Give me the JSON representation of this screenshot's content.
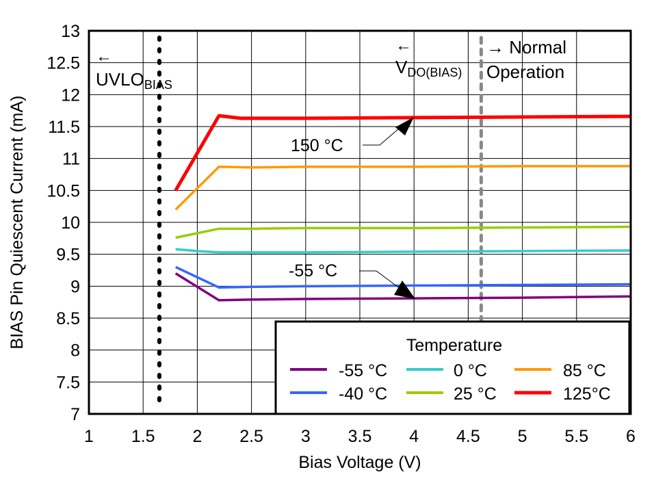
{
  "chart_data": {
    "type": "line",
    "xlabel": "Bias Voltage (V)",
    "ylabel": "BIAS Pin Quiescent Current (mA)",
    "xlim": [
      1,
      6
    ],
    "ylim": [
      7,
      13
    ],
    "xticks": [
      "1",
      "1.5",
      "2",
      "2.5",
      "3",
      "3.5",
      "4",
      "4.5",
      "5",
      "5.5",
      "6"
    ],
    "yticks": [
      "7",
      "7.5",
      "8",
      "8.5",
      "9",
      "9.5",
      "10",
      "10.5",
      "11",
      "11.5",
      "12",
      "12.5",
      "13"
    ],
    "grid": true,
    "legend": {
      "title": "Temperature",
      "placement": "bottom-right"
    },
    "series": [
      {
        "name": "-55 °C",
        "color": "#800080",
        "x": [
          1.8,
          2.2,
          2.5,
          3,
          4,
          5,
          6
        ],
        "y": [
          9.2,
          8.78,
          8.79,
          8.8,
          8.81,
          8.82,
          8.84
        ]
      },
      {
        "name": "-40 °C",
        "color": "#3366ff",
        "x": [
          1.8,
          2.2,
          2.5,
          3,
          4,
          5,
          6
        ],
        "y": [
          9.3,
          8.98,
          8.99,
          9.0,
          9.01,
          9.02,
          9.03
        ]
      },
      {
        "name": "0 °C",
        "color": "#33cccc",
        "x": [
          1.8,
          2.0,
          2.2,
          3,
          4,
          5,
          6
        ],
        "y": [
          9.58,
          9.55,
          9.53,
          9.53,
          9.54,
          9.55,
          9.56
        ]
      },
      {
        "name": "25 °C",
        "color": "#99cc00",
        "x": [
          1.8,
          2.2,
          2.5,
          3,
          4,
          5,
          6
        ],
        "y": [
          9.76,
          9.9,
          9.9,
          9.91,
          9.91,
          9.92,
          9.93
        ]
      },
      {
        "name": "85 °C",
        "color": "#ff9900",
        "x": [
          1.8,
          2.2,
          2.5,
          3,
          4,
          5,
          6
        ],
        "y": [
          10.2,
          10.87,
          10.86,
          10.87,
          10.87,
          10.88,
          10.88
        ]
      },
      {
        "name": "125°C",
        "color": "#ff0000",
        "x": [
          1.8,
          2.2,
          2.4,
          3,
          4,
          5,
          6
        ],
        "y": [
          10.5,
          11.67,
          11.63,
          11.63,
          11.64,
          11.65,
          11.66
        ]
      }
    ],
    "vlines": [
      {
        "x": 1.65,
        "color": "#000000",
        "style": "dotted"
      },
      {
        "x": 4.62,
        "color": "#888888",
        "style": "dashed"
      }
    ],
    "annotations": {
      "uvlo_arrow": "←",
      "uvlo_main": "UVLO",
      "uvlo_sub": "BIAS",
      "vdo_arrow": "←",
      "vdo_main": "V",
      "vdo_sub": "DO(BIAS)",
      "normal_line1": "→ Normal",
      "normal_line2": "Operation",
      "label_150": "150 °C",
      "label_m55": "-55 °C"
    }
  }
}
